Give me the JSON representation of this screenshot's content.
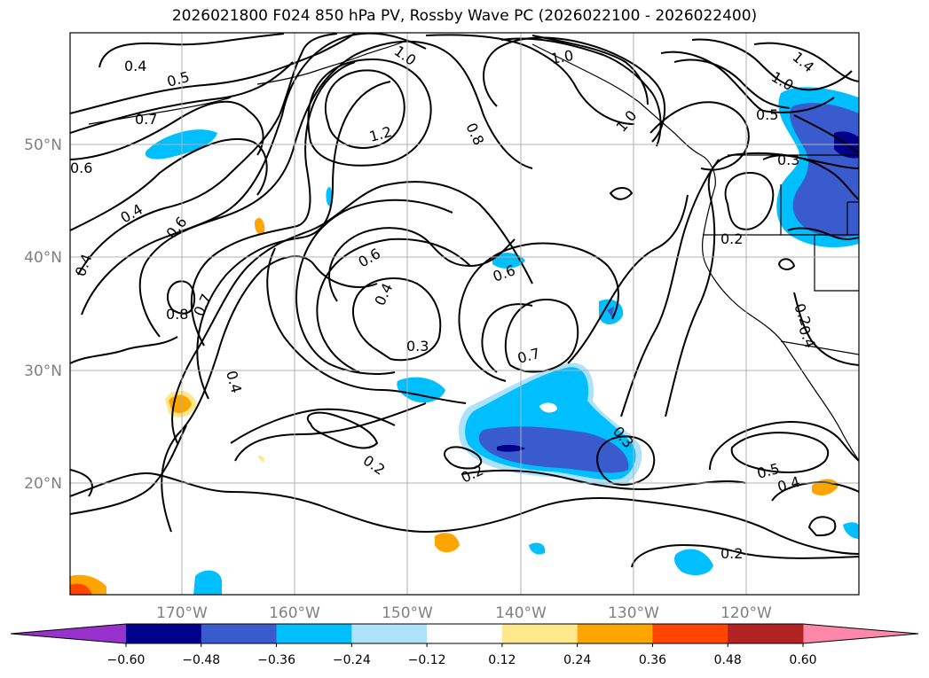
{
  "title": "2026021800 F024 850 hPa PV, Rossby Wave PC (2026022100 - 2026022400)",
  "map": {
    "lat_ticks": [
      "20°N",
      "30°N",
      "40°N",
      "50°N"
    ],
    "lon_ticks": [
      "170°W",
      "160°W",
      "150°W",
      "140°W",
      "130°W",
      "120°W"
    ],
    "grid": true,
    "contour_labels": [
      "0.4",
      "0.5",
      "0.7",
      "0.6",
      "0.4",
      "0.6",
      "0.4",
      "0.8",
      "0.7",
      "0.4",
      "1.0",
      "1.2",
      "0.8",
      "0.6",
      "0.4",
      "0.6",
      "0.3",
      "0.7",
      "0.2",
      "0.2",
      "0.3",
      "1.0",
      "1.0",
      "1.4",
      "1.0",
      "0.2",
      "0.5",
      "0.3",
      "0.2",
      "0.4",
      "0.5",
      "0.4",
      "0.2"
    ]
  },
  "colorbar": {
    "ticks": [
      "−0.60",
      "−0.48",
      "−0.36",
      "−0.24",
      "−0.12",
      "0.12",
      "0.24",
      "0.36",
      "0.48",
      "0.60"
    ],
    "colors": [
      "#9932cc",
      "#00008b",
      "#3a5bcd",
      "#00bfff",
      "#aee2fa",
      "#ffffff",
      "#ffe88c",
      "#ffa500",
      "#ff4500",
      "#b22222",
      "#ff88aa"
    ]
  }
}
